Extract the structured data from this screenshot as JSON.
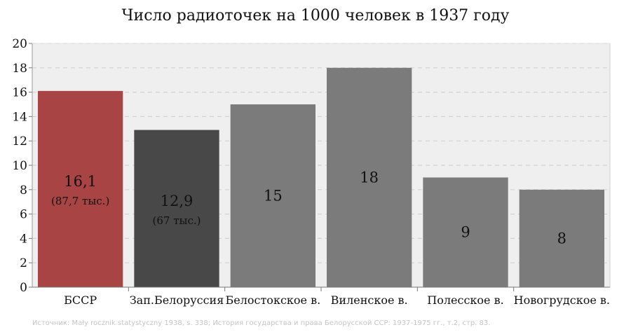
{
  "chart_data": {
    "type": "bar",
    "title": "Число радиоточек на 1000 человек в 1937 году",
    "categories": [
      "БССР",
      "Зап.Белоруссия",
      "Белостокское в.",
      "Виленское в.",
      "Полесское в.",
      "Новогрудское в."
    ],
    "values": [
      16.1,
      12.9,
      15,
      18,
      9,
      8
    ],
    "value_labels": [
      "16,1",
      "12,9",
      "15",
      "18",
      "9",
      "8"
    ],
    "sub_labels": [
      "(87,7 тыс.)",
      "(67 тыс.)",
      "",
      "",
      "",
      ""
    ],
    "bar_colors": [
      "#a94444",
      "#484848",
      "#7b7b7b",
      "#7b7b7b",
      "#7b7b7b",
      "#7b7b7b"
    ],
    "ylim": [
      0,
      20
    ],
    "yticks": [
      0,
      2,
      4,
      6,
      8,
      10,
      12,
      14,
      16,
      18,
      20
    ],
    "grid": true,
    "plot_background": "#efefef",
    "grid_color": "#d2d2d2"
  },
  "source_note": "Источник: Mały rocznik statystyczny 1938, s. 338; История государства и права Белорусской ССР: 1937-1975 гг., т.2, стр. 83."
}
